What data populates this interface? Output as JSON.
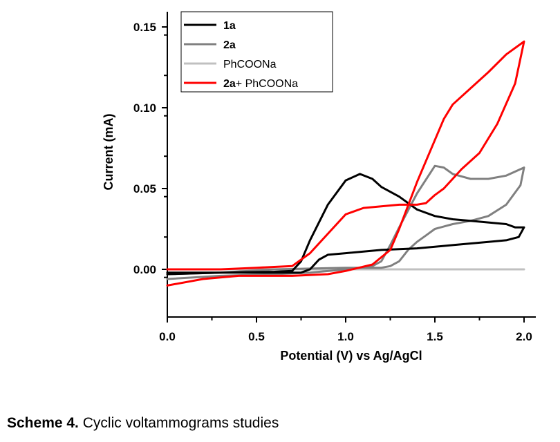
{
  "chart_data": {
    "type": "line",
    "xlabel": "Potential (V) vs Ag/AgCl",
    "ylabel": "Current (mA)",
    "xlim": [
      0.0,
      2.0
    ],
    "ylim": [
      -0.03,
      0.16
    ],
    "x_ticks": [
      "0.0",
      "0.5",
      "1.0",
      "1.5",
      "2.0"
    ],
    "y_ticks": [
      "0.00",
      "0.05",
      "0.10",
      "0.15"
    ],
    "x_tick_values": [
      0.0,
      0.5,
      1.0,
      1.5,
      2.0
    ],
    "y_tick_values": [
      0.0,
      0.05,
      0.1,
      0.15
    ],
    "legend_position": "top-left",
    "series": [
      {
        "name": "1a",
        "color": "#000000",
        "points": [
          [
            0.0,
            -0.003
          ],
          [
            0.3,
            -0.002
          ],
          [
            0.6,
            -0.0015
          ],
          [
            0.7,
            -0.001
          ],
          [
            0.75,
            0.005
          ],
          [
            0.8,
            0.018
          ],
          [
            0.9,
            0.04
          ],
          [
            1.0,
            0.055
          ],
          [
            1.08,
            0.059
          ],
          [
            1.15,
            0.056
          ],
          [
            1.2,
            0.051
          ],
          [
            1.3,
            0.045
          ],
          [
            1.4,
            0.037
          ],
          [
            1.5,
            0.033
          ],
          [
            1.6,
            0.031
          ],
          [
            1.7,
            0.03
          ],
          [
            1.8,
            0.029
          ],
          [
            1.9,
            0.028
          ],
          [
            1.95,
            0.026
          ],
          [
            2.0,
            0.026
          ],
          [
            1.97,
            0.02
          ],
          [
            1.9,
            0.018
          ],
          [
            1.8,
            0.017
          ],
          [
            1.6,
            0.015
          ],
          [
            1.4,
            0.013
          ],
          [
            1.2,
            0.012
          ],
          [
            1.0,
            0.01
          ],
          [
            0.9,
            0.009
          ],
          [
            0.85,
            0.006
          ],
          [
            0.8,
            0.0
          ],
          [
            0.75,
            -0.002
          ],
          [
            0.5,
            -0.002
          ],
          [
            0.2,
            -0.002
          ],
          [
            0.0,
            -0.002
          ]
        ]
      },
      {
        "name": "2a",
        "color": "#808080",
        "points": [
          [
            0.0,
            -0.006
          ],
          [
            0.3,
            -0.004
          ],
          [
            0.6,
            -0.003
          ],
          [
            0.8,
            -0.002
          ],
          [
            1.0,
            0.0
          ],
          [
            1.15,
            0.002
          ],
          [
            1.2,
            0.005
          ],
          [
            1.25,
            0.015
          ],
          [
            1.3,
            0.026
          ],
          [
            1.4,
            0.047
          ],
          [
            1.5,
            0.064
          ],
          [
            1.55,
            0.063
          ],
          [
            1.6,
            0.059
          ],
          [
            1.7,
            0.056
          ],
          [
            1.8,
            0.056
          ],
          [
            1.9,
            0.058
          ],
          [
            2.0,
            0.063
          ],
          [
            1.98,
            0.052
          ],
          [
            1.9,
            0.04
          ],
          [
            1.8,
            0.033
          ],
          [
            1.7,
            0.03
          ],
          [
            1.6,
            0.028
          ],
          [
            1.5,
            0.025
          ],
          [
            1.45,
            0.021
          ],
          [
            1.4,
            0.017
          ],
          [
            1.35,
            0.012
          ],
          [
            1.3,
            0.005
          ],
          [
            1.25,
            0.002
          ],
          [
            1.2,
            0.001
          ],
          [
            1.0,
            0.001
          ],
          [
            0.6,
            0.0
          ],
          [
            0.3,
            -0.002
          ],
          [
            0.0,
            -0.003
          ]
        ]
      },
      {
        "name": "PhCOONa",
        "color": "#c0c0c0",
        "points": [
          [
            0.0,
            0.0
          ],
          [
            0.5,
            0.0
          ],
          [
            1.0,
            0.0
          ],
          [
            1.5,
            0.0
          ],
          [
            2.0,
            0.0
          ]
        ]
      },
      {
        "name": "2a+ PhCOONa",
        "color": "#ff0000",
        "points": [
          [
            0.0,
            -0.01
          ],
          [
            0.2,
            -0.006
          ],
          [
            0.4,
            -0.004
          ],
          [
            0.7,
            -0.004
          ],
          [
            0.9,
            -0.003
          ],
          [
            1.0,
            -0.001
          ],
          [
            1.15,
            0.003
          ],
          [
            1.25,
            0.012
          ],
          [
            1.3,
            0.025
          ],
          [
            1.4,
            0.054
          ],
          [
            1.5,
            0.08
          ],
          [
            1.55,
            0.093
          ],
          [
            1.6,
            0.102
          ],
          [
            1.7,
            0.112
          ],
          [
            1.8,
            0.122
          ],
          [
            1.9,
            0.133
          ],
          [
            2.0,
            0.141
          ],
          [
            1.95,
            0.115
          ],
          [
            1.85,
            0.09
          ],
          [
            1.75,
            0.072
          ],
          [
            1.65,
            0.062
          ],
          [
            1.55,
            0.05
          ],
          [
            1.5,
            0.046
          ],
          [
            1.45,
            0.041
          ],
          [
            1.4,
            0.04
          ],
          [
            1.3,
            0.04
          ],
          [
            1.2,
            0.039
          ],
          [
            1.1,
            0.038
          ],
          [
            1.0,
            0.034
          ],
          [
            0.9,
            0.022
          ],
          [
            0.8,
            0.01
          ],
          [
            0.7,
            0.002
          ],
          [
            0.5,
            0.001
          ],
          [
            0.3,
            0.0
          ],
          [
            0.0,
            0.0
          ]
        ]
      }
    ],
    "legend": [
      {
        "label": "1a",
        "bold": true
      },
      {
        "label": "2a",
        "bold": true
      },
      {
        "label": "PhCOONa",
        "bold": false
      },
      {
        "label_bold": "2a",
        "label_rest": "+ PhCOONa"
      }
    ]
  },
  "caption": {
    "label": "Scheme 4.",
    "text": " Cyclic voltammograms studies"
  }
}
